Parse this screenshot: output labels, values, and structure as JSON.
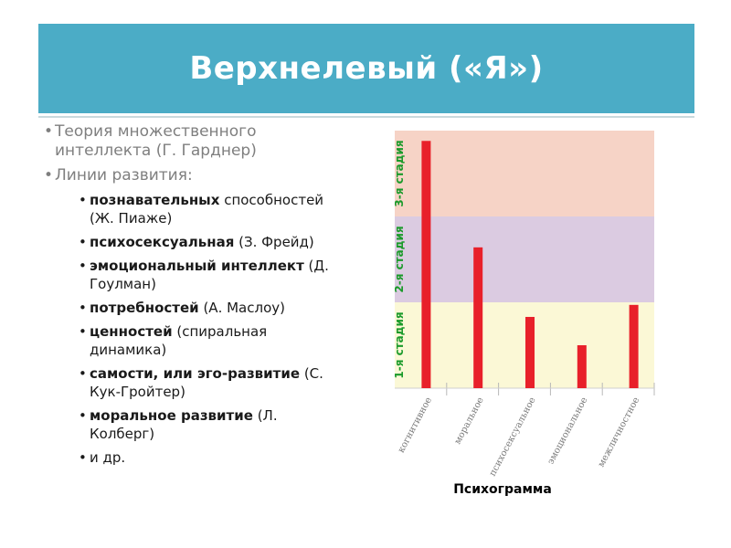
{
  "title": "Верхнелевый («Я»)",
  "level1": [
    {
      "text": "Теория множественного интеллекта (Г. Гарднер)"
    },
    {
      "text": "Линии развития:"
    }
  ],
  "items": [
    {
      "bold": "познавательных",
      "rest": " способностей (Ж. Пиаже)"
    },
    {
      "bold": "психосексуальная",
      "rest": " (З. Фрейд)"
    },
    {
      "bold": "эмоциональный интеллект",
      "rest": " (Д. Гоулман)"
    },
    {
      "bold": "потребностей",
      "rest": " (А. Маслоу)"
    },
    {
      "bold": "ценностей",
      "rest": " (спиральная динамика)"
    },
    {
      "bold": "самости, или эго-развитие",
      "rest": " (С. Кук-Гройтер)"
    },
    {
      "bold": "моральное развитие",
      "rest": " (Л. Колберг)"
    },
    {
      "bold": "",
      "rest": "и др."
    }
  ],
  "chart_data": {
    "type": "bar",
    "title": "Психограмма",
    "categories": [
      "когнитивное",
      "моральное",
      "психосексуальное",
      "эмоциональное",
      "межличностное"
    ],
    "values": [
      2.88,
      1.64,
      0.83,
      0.5,
      0.97
    ],
    "ylim": [
      0,
      3
    ],
    "stages": [
      {
        "label": "1-я стадия",
        "from": 0,
        "to": 1,
        "color": "#fbf8d6"
      },
      {
        "label": "2-я стадия",
        "from": 1,
        "to": 2,
        "color": "#dbcbe1"
      },
      {
        "label": "3-я стадия",
        "from": 2,
        "to": 3,
        "color": "#f6d3c6"
      }
    ],
    "bar_color": "#e8202a",
    "stage_label_color": "#1a9a2a",
    "grid": true
  }
}
